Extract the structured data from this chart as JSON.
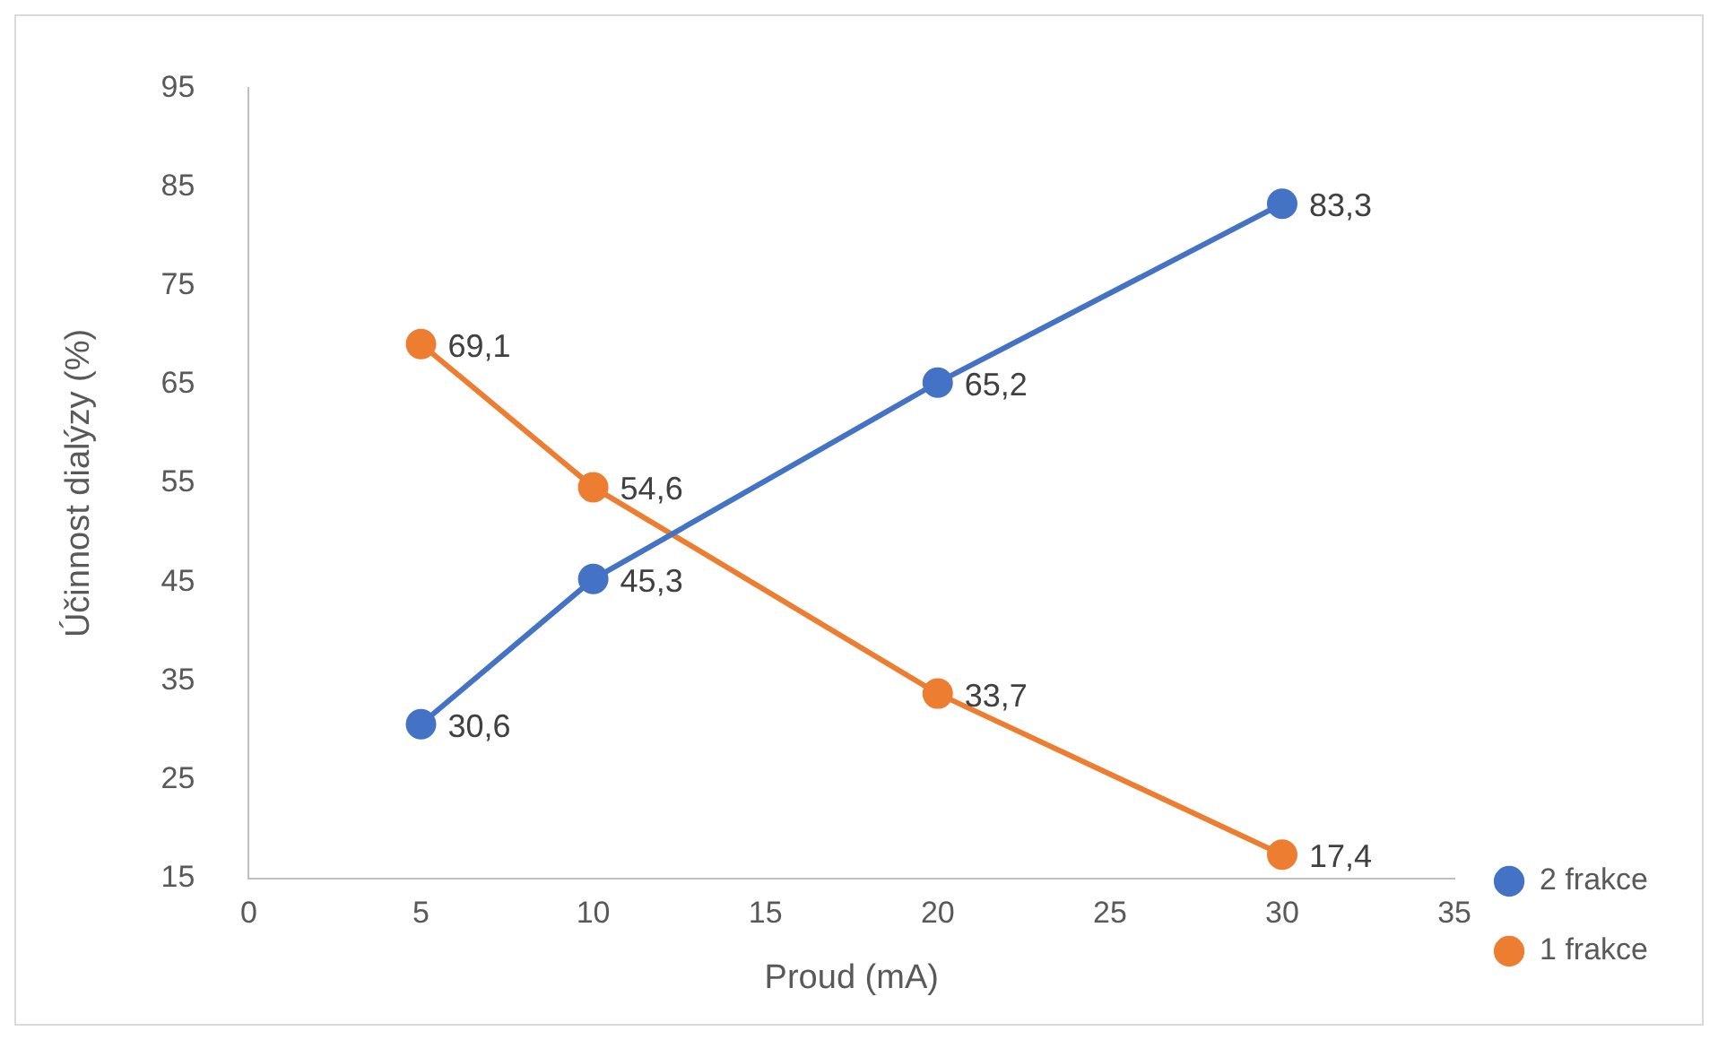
{
  "chart_data": {
    "type": "line",
    "xlabel": "Proud (mA)",
    "ylabel": "Účinnost dialýzy (%)",
    "x": [
      5,
      10,
      20,
      30
    ],
    "xlim": [
      0,
      35
    ],
    "xticks": [
      0,
      5,
      10,
      15,
      20,
      25,
      30,
      35
    ],
    "ylim": [
      15,
      95
    ],
    "yticks": [
      15,
      25,
      35,
      45,
      55,
      65,
      75,
      85,
      95
    ],
    "grid": false,
    "legend": "right",
    "marker": "circle",
    "line_style": "solid",
    "series": [
      {
        "name": "2 frakce",
        "color": "#4472c4",
        "values": [
          30.6,
          45.3,
          65.2,
          83.3
        ],
        "value_labels": [
          "30,6",
          "45,3",
          "65,2",
          "83,3"
        ]
      },
      {
        "name": "1 frakce",
        "color": "#ed7d31",
        "values": [
          69.1,
          54.6,
          33.7,
          17.4
        ],
        "value_labels": [
          "69,1",
          "54,6",
          "33,7",
          "17,4"
        ]
      }
    ]
  }
}
